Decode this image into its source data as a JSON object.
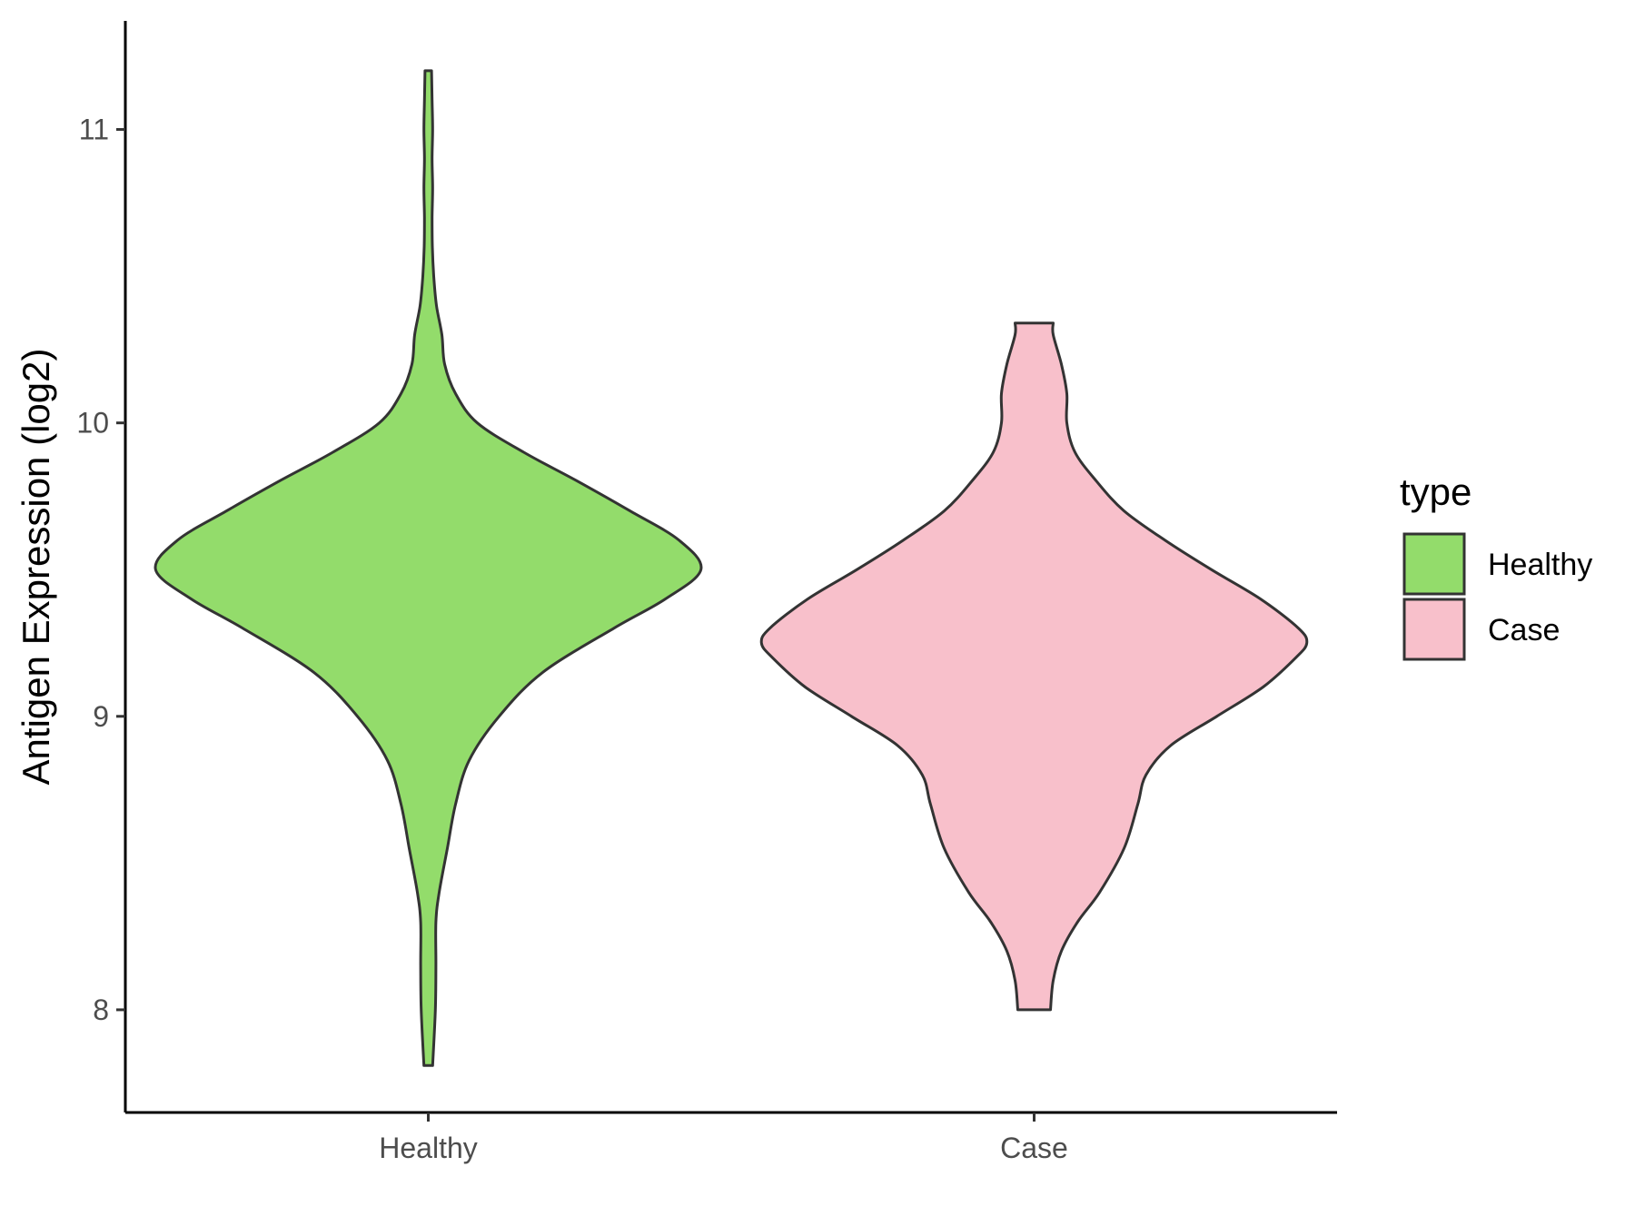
{
  "chart_data": {
    "type": "violin",
    "title": "",
    "xlabel": "",
    "ylabel": "Antigen Expression (log2)",
    "ylim": [
      7.65,
      11.37
    ],
    "yticks": [
      8,
      9,
      10,
      11
    ],
    "categories": [
      "Healthy",
      "Case"
    ],
    "grid": false,
    "legend": {
      "title": "type",
      "position": "right",
      "entries": [
        {
          "label": "Healthy",
          "color": "#93dc6b"
        },
        {
          "label": "Case",
          "color": "#f8c0cb"
        }
      ]
    },
    "series": [
      {
        "name": "Healthy",
        "color": "#93dc6b",
        "min": 7.81,
        "max": 11.2,
        "profile": [
          [
            7.81,
            0.016
          ],
          [
            8.0,
            0.026
          ],
          [
            8.15,
            0.028
          ],
          [
            8.3,
            0.028
          ],
          [
            8.4,
            0.04
          ],
          [
            8.55,
            0.07
          ],
          [
            8.7,
            0.1
          ],
          [
            8.85,
            0.15
          ],
          [
            9.0,
            0.26
          ],
          [
            9.15,
            0.42
          ],
          [
            9.3,
            0.68
          ],
          [
            9.4,
            0.87
          ],
          [
            9.5,
            1.0
          ],
          [
            9.6,
            0.92
          ],
          [
            9.7,
            0.74
          ],
          [
            9.8,
            0.55
          ],
          [
            9.9,
            0.35
          ],
          [
            10.0,
            0.18
          ],
          [
            10.1,
            0.1
          ],
          [
            10.2,
            0.06
          ],
          [
            10.3,
            0.05
          ],
          [
            10.4,
            0.03
          ],
          [
            10.5,
            0.02
          ],
          [
            10.6,
            0.015
          ],
          [
            10.7,
            0.014
          ],
          [
            10.8,
            0.016
          ],
          [
            10.9,
            0.014
          ],
          [
            11.0,
            0.016
          ],
          [
            11.1,
            0.014
          ],
          [
            11.2,
            0.012
          ]
        ]
      },
      {
        "name": "Case",
        "color": "#f8c0cb",
        "min": 8.0,
        "max": 10.34,
        "profile": [
          [
            8.0,
            0.06
          ],
          [
            8.1,
            0.07
          ],
          [
            8.2,
            0.1
          ],
          [
            8.3,
            0.16
          ],
          [
            8.4,
            0.24
          ],
          [
            8.55,
            0.33
          ],
          [
            8.7,
            0.38
          ],
          [
            8.8,
            0.41
          ],
          [
            8.9,
            0.5
          ],
          [
            9.0,
            0.67
          ],
          [
            9.1,
            0.84
          ],
          [
            9.2,
            0.96
          ],
          [
            9.25,
            1.0
          ],
          [
            9.3,
            0.97
          ],
          [
            9.4,
            0.83
          ],
          [
            9.5,
            0.65
          ],
          [
            9.6,
            0.48
          ],
          [
            9.7,
            0.33
          ],
          [
            9.8,
            0.23
          ],
          [
            9.9,
            0.15
          ],
          [
            10.0,
            0.12
          ],
          [
            10.1,
            0.12
          ],
          [
            10.2,
            0.1
          ],
          [
            10.3,
            0.07
          ],
          [
            10.34,
            0.07
          ]
        ]
      }
    ]
  }
}
